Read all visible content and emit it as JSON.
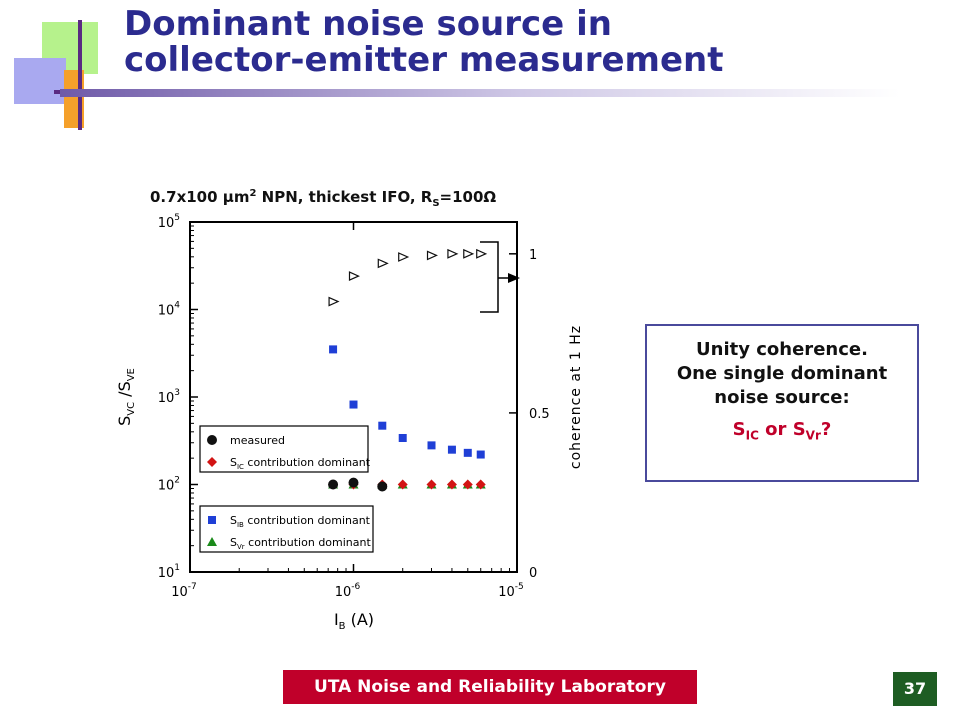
{
  "slide": {
    "title_line1": "Dominant noise source in",
    "title_line2": "collector-emitter measurement",
    "page_number": "37",
    "footer": "UTA Noise and Reliability Laboratory"
  },
  "infobox": {
    "line1": "Unity coherence.",
    "line2": "One single dominant",
    "line3": "noise source:",
    "s1": "S",
    "s1_sub": "IC",
    "or": " or ",
    "s2": "S",
    "s2_sub": "Vr",
    "end": "?"
  },
  "colors": {
    "title": "#2b2b8f",
    "footer_bg": "#c0002a",
    "page_bg": "#1e5d23",
    "blue": "#1f3fd6",
    "red": "#d21414",
    "green": "#1a8a1a"
  },
  "chart_data": {
    "type": "scatter",
    "title": {
      "pre": "0.7x100 µm",
      "sup": "2",
      "mid": " NPN, thickest IFO, R",
      "sub": "S",
      "post": "=100Ω"
    },
    "xlabel": {
      "main": "I",
      "sub": "B",
      "unit": " (A)"
    },
    "ylabel_left": {
      "s1": "S",
      "sub1": "VC",
      "mid": " /S",
      "sub2": "VE"
    },
    "ylabel_right": "coherence at 1 Hz",
    "x_scale": "log",
    "xlim": [
      1e-07,
      1e-05
    ],
    "y_scale": "log",
    "ylim": [
      10,
      100000
    ],
    "y2lim": [
      0,
      1.1
    ],
    "x_ticks": [
      {
        "base": "10",
        "exp": "-7"
      },
      {
        "base": "10",
        "exp": "-6"
      },
      {
        "base": "10",
        "exp": "-5"
      }
    ],
    "y_ticks": [
      {
        "base": "10",
        "exp": "1"
      },
      {
        "base": "10",
        "exp": "2"
      },
      {
        "base": "10",
        "exp": "3"
      },
      {
        "base": "10",
        "exp": "4"
      },
      {
        "base": "10",
        "exp": "5"
      }
    ],
    "y2_ticks": [
      "0",
      "0.5",
      "1"
    ],
    "series": [
      {
        "name": "measured",
        "marker": "circle",
        "color": "#111111",
        "x": [
          7.5e-07,
          1e-06,
          1.5e-06
        ],
        "y": [
          100,
          105,
          95
        ]
      },
      {
        "name": "S_IC contribution dominant",
        "marker": "diamond",
        "color": "#d21414",
        "x": [
          7.5e-07,
          1e-06,
          1.5e-06,
          2e-06,
          3e-06,
          4e-06,
          5e-06,
          6e-06
        ],
        "y": [
          100,
          100,
          100,
          100,
          100,
          100,
          100,
          100
        ]
      },
      {
        "name": "S_IB contribution dominant",
        "marker": "square",
        "color": "#1f3fd6",
        "x": [
          7.5e-07,
          1e-06,
          1.5e-06,
          2e-06,
          3e-06,
          4e-06,
          5e-06,
          6e-06
        ],
        "y": [
          3500,
          820,
          470,
          340,
          280,
          250,
          230,
          220
        ]
      },
      {
        "name": "S_Vr contribution dominant",
        "marker": "triangle-up",
        "color": "#1a8a1a",
        "x": [
          7.5e-07,
          1e-06,
          1.5e-06,
          2e-06,
          3e-06,
          4e-06,
          5e-06,
          6e-06
        ],
        "y": [
          100,
          100,
          100,
          100,
          100,
          100,
          100,
          100
        ]
      },
      {
        "name": "",
        "axis": "right",
        "marker": "triangle-right",
        "color": "#111111",
        "x": [
          7.5e-07,
          1e-06,
          1.5e-06,
          2e-06,
          3e-06,
          4e-06,
          5e-06,
          6e-06
        ],
        "y": [
          0.85,
          0.93,
          0.97,
          0.99,
          0.995,
          1.0,
          1.0,
          1.0
        ]
      }
    ],
    "legend_top": {
      "items": [
        {
          "label": "measured",
          "marker": "circle",
          "color": "#111111"
        },
        {
          "s": "S",
          "sub": "IC",
          "rest": " contribution dominant",
          "marker": "diamond",
          "color": "#d21414"
        }
      ]
    },
    "legend_bottom": {
      "items": [
        {
          "s": "S",
          "sub": "IB",
          "rest": " contribution dominant",
          "marker": "square",
          "color": "#1f3fd6"
        },
        {
          "s": "S",
          "sub": "Vr",
          "rest": " contribution dominant",
          "marker": "triangle-up",
          "color": "#1a8a1a"
        }
      ]
    }
  }
}
